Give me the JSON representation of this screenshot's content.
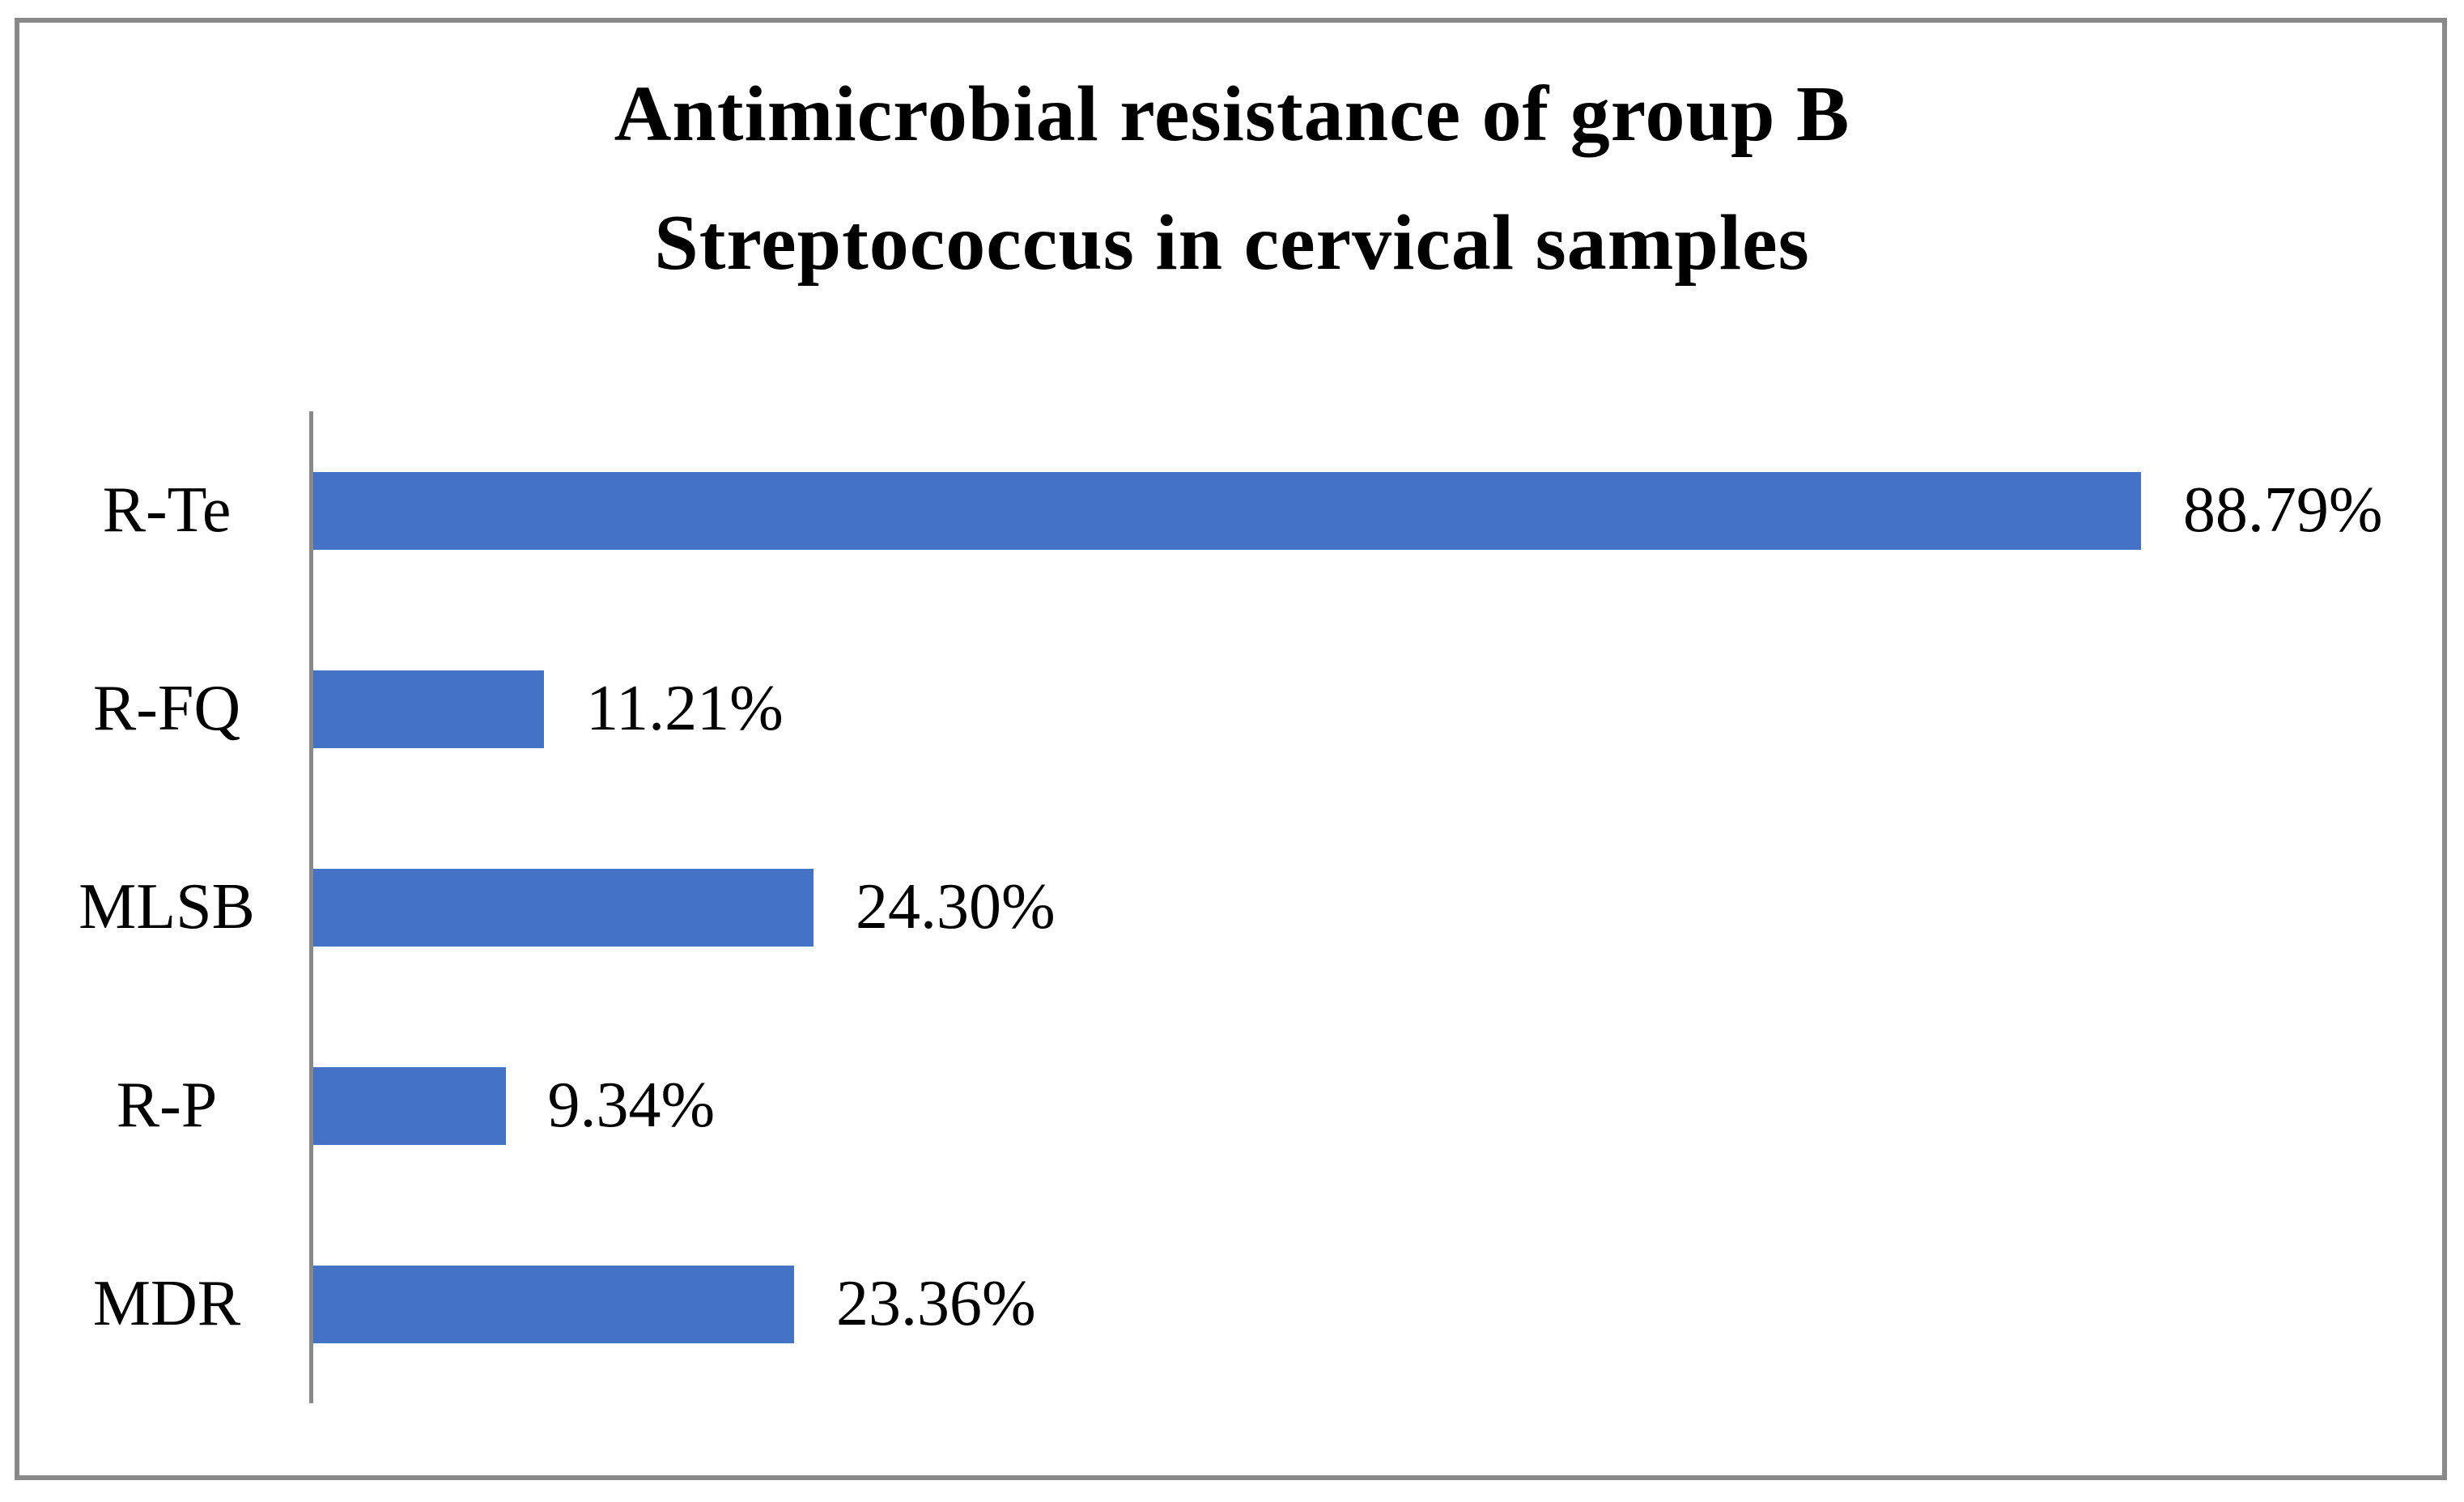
{
  "chart_data": {
    "type": "bar",
    "orientation": "horizontal",
    "title": "Antimicrobial resistance of group B Streptococcus in cervical samples",
    "title_lines": {
      "line1": "Antimicrobial resistance of group B",
      "line2": "Streptococcus in cervical samples"
    },
    "categories": [
      "R-Te",
      "R-FQ",
      "MLSB",
      "R-P",
      "MDR"
    ],
    "values": [
      88.79,
      11.21,
      24.3,
      9.34,
      23.36
    ],
    "value_labels": [
      "88.79%",
      "11.21%",
      "24.30%",
      "9.34%",
      "23.36%"
    ],
    "xlabel": "",
    "ylabel": "",
    "xlim": [
      0,
      100
    ],
    "grid": false,
    "legend_position": "none",
    "bar_color": "#4472C4",
    "axis_color": "#898989",
    "data_label_position": "outside-end"
  }
}
